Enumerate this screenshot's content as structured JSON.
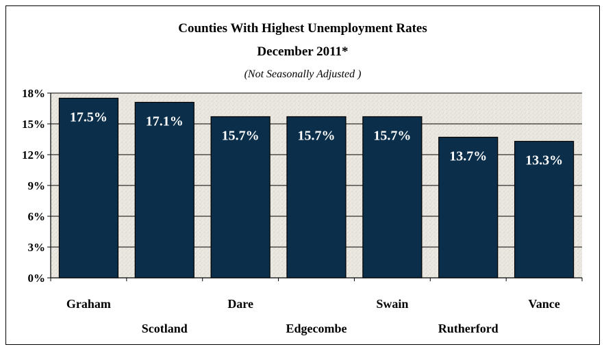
{
  "chart_data": {
    "type": "bar",
    "title": "Counties With Highest Unemployment Rates",
    "subtitle": "December 2011*",
    "note": "(Not Seasonally Adjusted )",
    "categories": [
      "Graham",
      "Scotland",
      "Dare",
      "Edgecombe",
      "Swain",
      "Rutherford",
      "Vance"
    ],
    "values": [
      17.5,
      17.1,
      15.7,
      15.7,
      15.7,
      13.7,
      13.3
    ],
    "data_labels": [
      "17.5%",
      "17.1%",
      "15.7%",
      "15.7%",
      "15.7%",
      "13.7%",
      "13.3%"
    ],
    "yticks": [
      "0%",
      "3%",
      "6%",
      "9%",
      "12%",
      "15%",
      "18%"
    ],
    "ylim": [
      0,
      18
    ],
    "xlabel": "",
    "ylabel": "",
    "grid": true,
    "bar_color": "#0b2f4a",
    "plot_background": "#e9e6e0"
  }
}
